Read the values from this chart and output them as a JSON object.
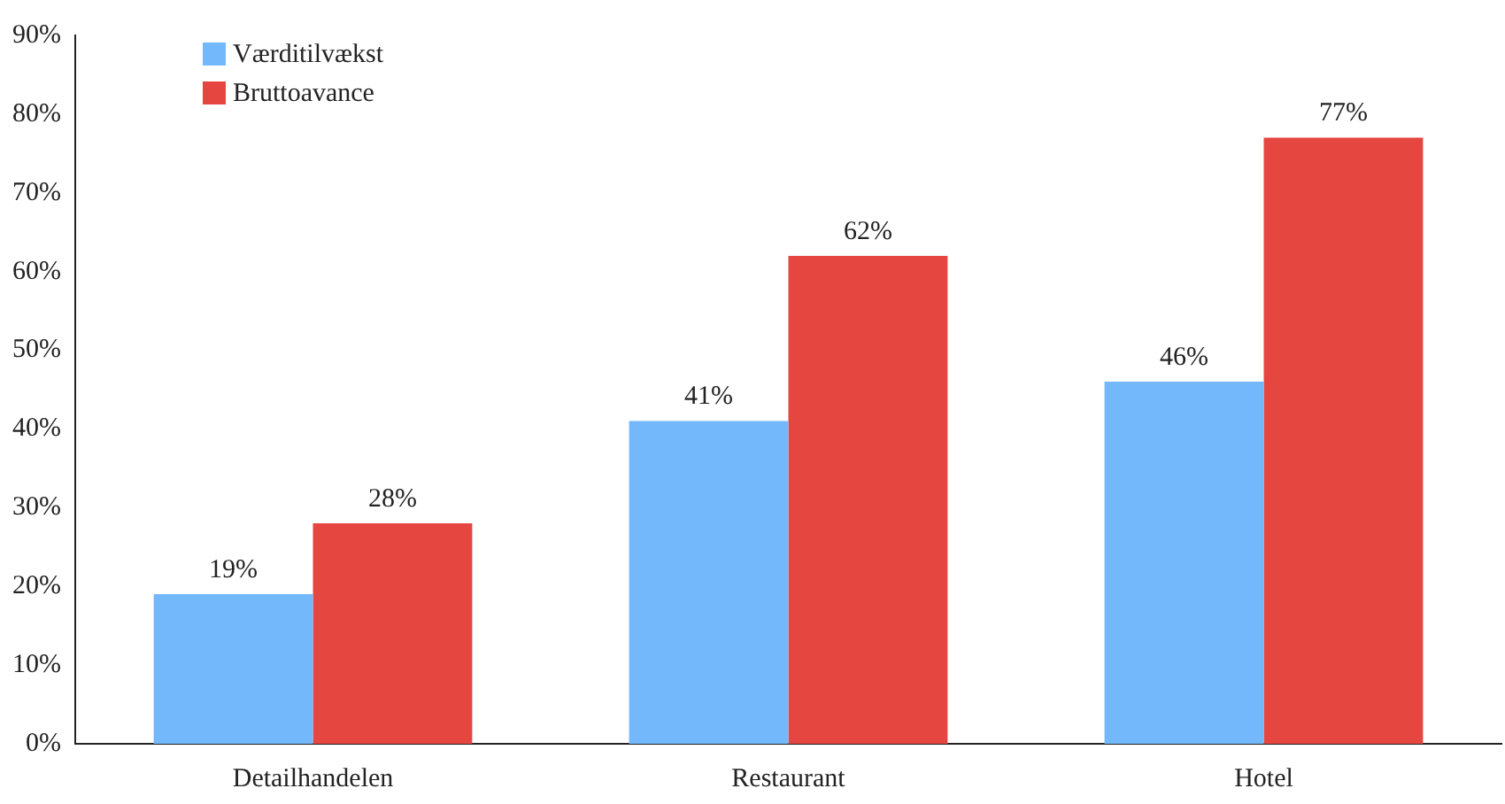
{
  "chart_data": {
    "type": "bar",
    "categories": [
      "Detailhandelen",
      "Restaurant",
      "Hotel"
    ],
    "series": [
      {
        "name": "Værditilvækst",
        "color": "#74b8fc",
        "values": [
          19,
          41,
          46
        ],
        "value_labels": [
          "19%",
          "41%",
          "46%"
        ]
      },
      {
        "name": "Bruttoavance",
        "color": "#e54640",
        "values": [
          28,
          62,
          77
        ],
        "value_labels": [
          "28%",
          "62%",
          "77%"
        ]
      }
    ],
    "ylim": [
      0,
      90
    ],
    "yticks": [
      {
        "value": 0,
        "label": "0%"
      },
      {
        "value": 10,
        "label": "10%"
      },
      {
        "value": 20,
        "label": "20%"
      },
      {
        "value": 30,
        "label": "30%"
      },
      {
        "value": 40,
        "label": "40%"
      },
      {
        "value": 50,
        "label": "50%"
      },
      {
        "value": 60,
        "label": "60%"
      },
      {
        "value": 70,
        "label": "70%"
      },
      {
        "value": 80,
        "label": "80%"
      },
      {
        "value": 90,
        "label": "90%"
      }
    ],
    "grid": false,
    "legend": "top left"
  }
}
